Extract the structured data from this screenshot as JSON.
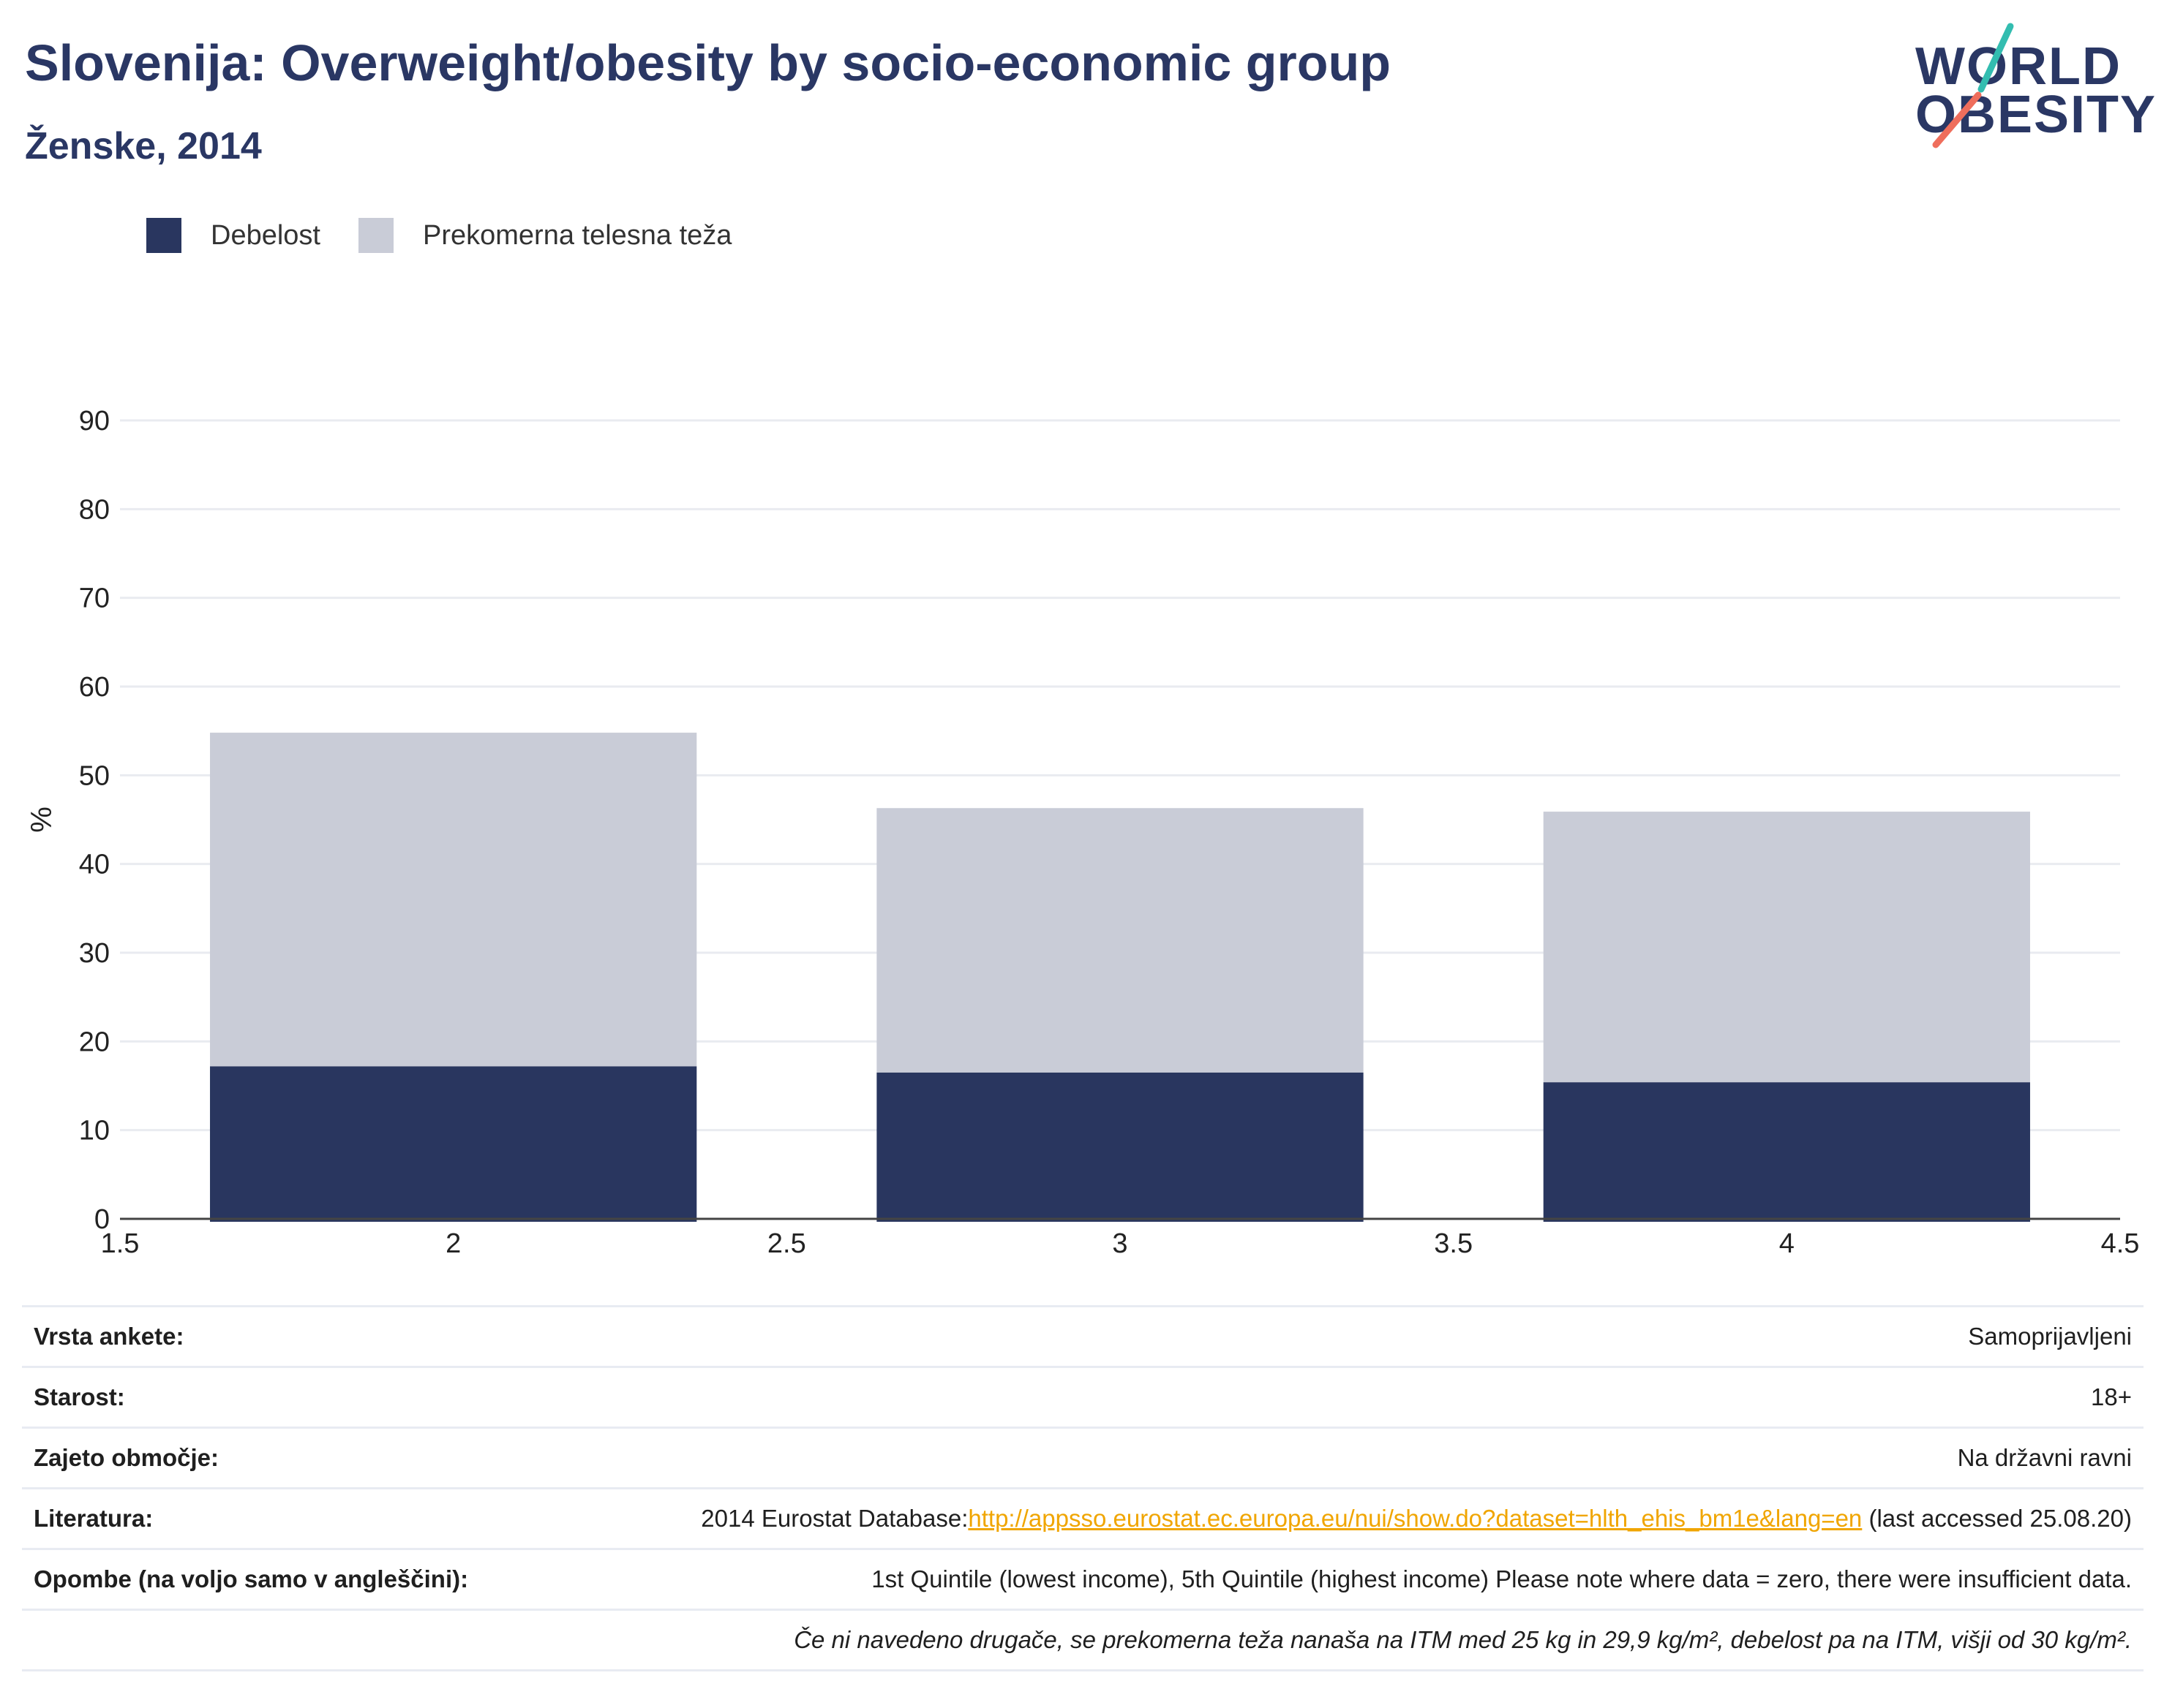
{
  "header": {
    "title": "Slovenija: Overweight/obesity by socio-economic group",
    "subtitle": "Ženske, 2014"
  },
  "logo": {
    "line1": "WORLD",
    "line2": "OBESITY"
  },
  "chart_data": {
    "type": "bar",
    "stacked": true,
    "x": [
      2,
      3,
      4
    ],
    "series": [
      {
        "name": "Debelost",
        "color": "#29365f",
        "values": [
          17.2,
          16.5,
          15.4
        ]
      },
      {
        "name": "Prekomerna telesna teža",
        "color": "#c9ccd7",
        "values": [
          37.6,
          29.8,
          30.5
        ]
      }
    ],
    "xlim": [
      1.5,
      4.5
    ],
    "xticks": [
      "1.5",
      "2",
      "2.5",
      "3",
      "3.5",
      "4",
      "4.5"
    ],
    "xtick_values": [
      1.5,
      2,
      2.5,
      3,
      3.5,
      4,
      4.5
    ],
    "ylim": [
      0,
      90
    ],
    "yticks": [
      "0",
      "10",
      "20",
      "30",
      "40",
      "50",
      "60",
      "70",
      "80",
      "90"
    ],
    "ylabel": "%",
    "xlabel": "",
    "grid": true,
    "legend": "top-left"
  },
  "info": [
    {
      "key": "Vrsta ankete:",
      "value": "Samoprijavljeni"
    },
    {
      "key": "Starost:",
      "value": "18+"
    },
    {
      "key": "Zajeto območje:",
      "value": "Na državni ravni"
    },
    {
      "key": "Literatura:",
      "prefix": "2014 Eurostat Database:",
      "link": "http://appsso.eurostat.ec.europa.eu/nui/show.do?dataset=hlth_ehis_bm1e&lang=en",
      "suffix": " (last accessed 25.08.20)"
    },
    {
      "key": "Opombe (na voljo samo v angleščini):",
      "value": "1st Quintile (lowest income), 5th Quintile (highest income) Please note where data = zero, there were insufficient data."
    }
  ],
  "footnote": "Če ni navedeno drugače, se prekomerna teža nanaša na ITM med 25 kg in 29,9 kg/m², debelost pa na ITM, višji od 30 kg/m²."
}
